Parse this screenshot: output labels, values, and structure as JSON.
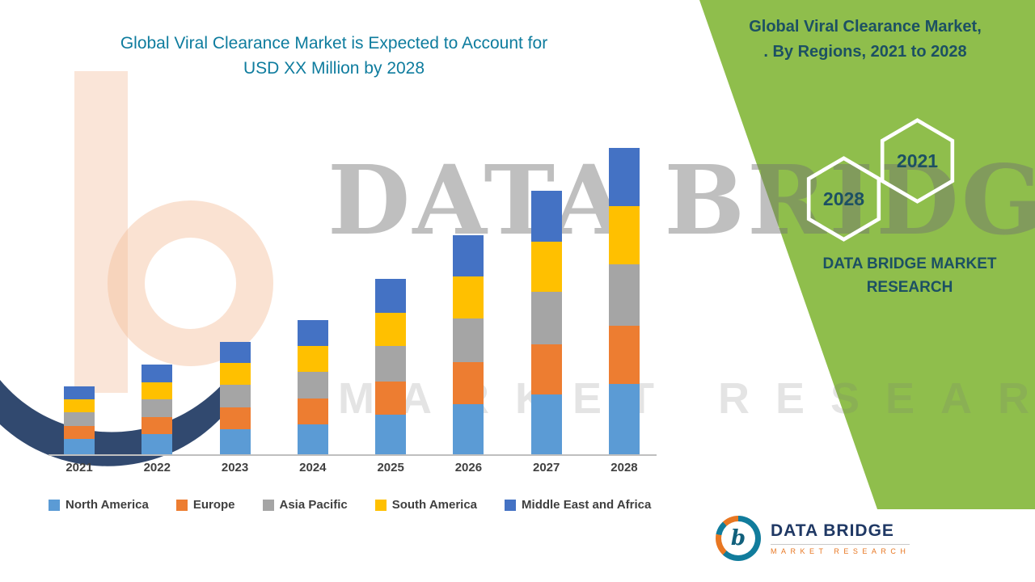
{
  "left_title": {
    "lines": [
      "Global Viral Clearance Market is Expected to Account for",
      "USD XX Million by 2028"
    ],
    "color": "#0E7C9E"
  },
  "right_panel": {
    "bg_color": "#8FBE4C",
    "title_lines": [
      "Global Viral Clearance Market,",
      ". By Regions, 2021 to 2028"
    ],
    "title_color": "#1C5063",
    "hexagon_back": "2021",
    "hexagon_front": "2028",
    "brand_lines": [
      "DATA BRIDGE MARKET",
      "RESEARCH"
    ]
  },
  "watermarks": {
    "big_text": "DATA BRIDGE",
    "spaced_text": "MARKET RESEARCH"
  },
  "footer_logo": {
    "monogram": "b",
    "name": "DATA BRIDGE",
    "subtitle": "MARKET RESEARCH"
  },
  "chart_data": {
    "type": "bar",
    "stacked": true,
    "title": "Global Viral Clearance Market is Expected to Account for USD XX Million by 2028",
    "xlabel": "",
    "ylabel": "",
    "y_axis_visible": false,
    "legend_position": "bottom",
    "categories": [
      "2021",
      "2022",
      "2023",
      "2024",
      "2025",
      "2026",
      "2027",
      "2028"
    ],
    "series": [
      {
        "name": "North America",
        "color": "#5B9BD5",
        "values": [
          20,
          26,
          32,
          38,
          50,
          63,
          75,
          88
        ]
      },
      {
        "name": "Europe",
        "color": "#ED7D31",
        "values": [
          16,
          21,
          27,
          32,
          41,
          52,
          62,
          72
        ]
      },
      {
        "name": "Asia Pacific",
        "color": "#A5A5A5",
        "values": [
          17,
          22,
          28,
          33,
          44,
          54,
          65,
          76
        ]
      },
      {
        "name": "South America",
        "color": "#FFC000",
        "values": [
          16,
          21,
          27,
          32,
          41,
          52,
          62,
          72
        ]
      },
      {
        "name": "Middle East and Africa",
        "color": "#4472C4",
        "values": [
          16,
          22,
          26,
          32,
          42,
          51,
          63,
          72
        ]
      }
    ],
    "totals": [
      85,
      112,
      140,
      167,
      218,
      272,
      327,
      380
    ],
    "note": "No numeric y-axis is shown in the source image; values are relative units estimated from bar segment heights."
  }
}
